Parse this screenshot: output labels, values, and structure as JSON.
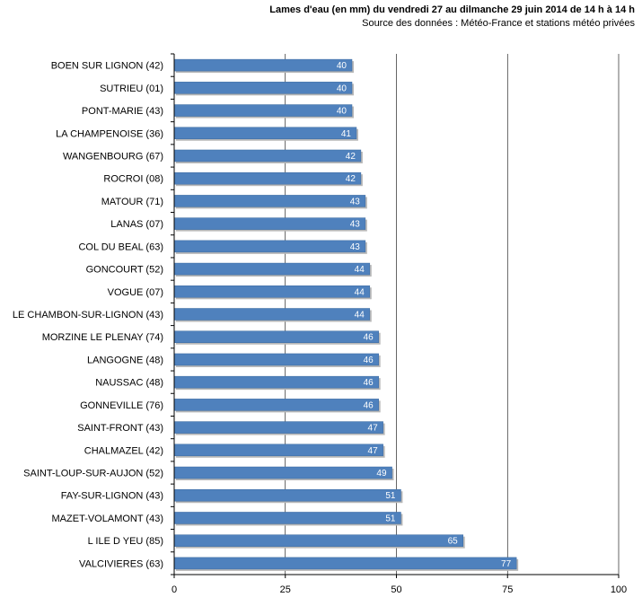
{
  "chart_data": {
    "type": "bar",
    "orientation": "horizontal",
    "title": "Lames d'eau (en mm) du vendredi 27 au dilmanche 29 juin 2014 de 14 h à 14 h",
    "subtitle": "Source des données : Météo-France et stations  météo privées",
    "categories": [
      "BOEN SUR LIGNON  (42)",
      "SUTRIEU  (01)",
      "PONT-MARIE  (43)",
      "LA CHAMPENOISE  (36)",
      "WANGENBOURG  (67)",
      "ROCROI  (08)",
      "MATOUR  (71)",
      "LANAS (07)",
      "COL DU BEAL (63)",
      "GONCOURT (52)",
      "VOGUE  (07)",
      "LE CHAMBON-SUR-LIGNON  (43)",
      "MORZINE LE PLENAY  (74)",
      "LANGOGNE  (48)",
      "NAUSSAC  (48)",
      "GONNEVILLE  (76)",
      "SAINT-FRONT  (43)",
      "CHALMAZEL  (42)",
      "SAINT-LOUP-SUR-AUJON  (52)",
      "FAY-SUR-LIGNON  (43)",
      "MAZET-VOLAMONT  (43)",
      "L ILE D YEU  (85)",
      "VALCIVIERES  (63)"
    ],
    "values": [
      40,
      40,
      40,
      41,
      42,
      42,
      43,
      43,
      43,
      44,
      44,
      44,
      46,
      46,
      46,
      46,
      47,
      47,
      49,
      51,
      51,
      65,
      77
    ],
    "xlim": [
      0,
      100
    ],
    "xticks": [
      0,
      25,
      50,
      75,
      100
    ],
    "grid": true,
    "data_labels": true,
    "colors": {
      "bar": "#4f81bd",
      "bar_edge": "#3b6aa0",
      "grid": "#000000"
    }
  }
}
